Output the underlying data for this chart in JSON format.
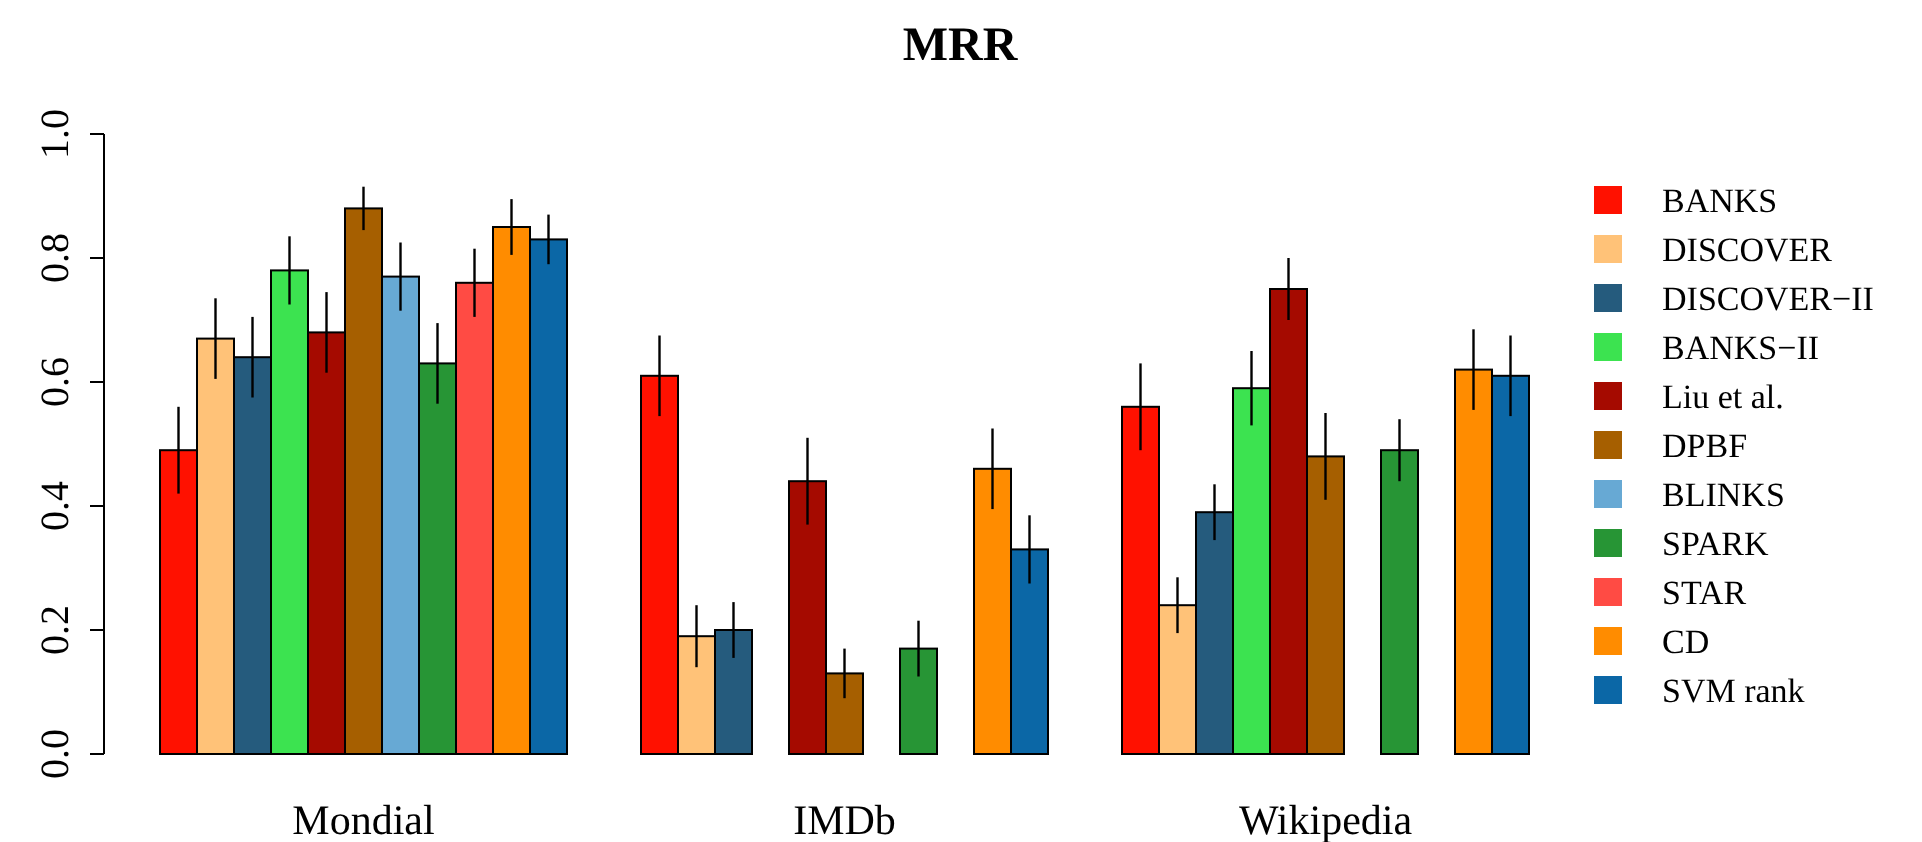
{
  "chart_data": {
    "type": "bar",
    "title": "MRR",
    "categories": [
      "Mondial",
      "IMDb",
      "Wikipedia"
    ],
    "ylim": [
      0,
      1
    ],
    "yticks": [
      {
        "value": 0,
        "label": "0.0"
      },
      0.2,
      0.4,
      0.6,
      0.8,
      {
        "value": 1,
        "label": "1.0"
      }
    ],
    "grid": false,
    "legend": "right",
    "series": [
      {
        "name": "BANKS",
        "color": "#ff1100",
        "values": [
          0.49,
          0.61,
          0.56
        ],
        "errors": [
          0.07,
          0.065,
          0.07
        ]
      },
      {
        "name": "DISCOVER",
        "color": "#ffc278",
        "values": [
          0.67,
          0.19,
          0.24
        ],
        "errors": [
          0.065,
          0.05,
          0.045
        ]
      },
      {
        "name": "DISCOVER−II",
        "color": "#255b7d",
        "values": [
          0.64,
          0.2,
          0.39
        ],
        "errors": [
          0.065,
          0.045,
          0.045
        ]
      },
      {
        "name": "BANKS−II",
        "color": "#3ce350",
        "values": [
          0.78,
          0,
          0.59
        ],
        "errors": [
          0.055,
          null,
          0.06
        ]
      },
      {
        "name": "Liu et al.",
        "color": "#a50a00",
        "values": [
          0.68,
          0.44,
          0.75
        ],
        "errors": [
          0.065,
          0.07,
          0.05
        ]
      },
      {
        "name": "DPBF",
        "color": "#a65f00",
        "values": [
          0.88,
          0.13,
          0.48
        ],
        "errors": [
          0.035,
          0.04,
          0.07
        ]
      },
      {
        "name": "BLINKS",
        "color": "#67a9d4",
        "values": [
          0.77,
          0,
          0
        ],
        "errors": [
          0.055,
          null,
          null
        ]
      },
      {
        "name": "SPARK",
        "color": "#279535",
        "values": [
          0.63,
          0.17,
          0.49
        ],
        "errors": [
          0.065,
          0.045,
          0.05
        ]
      },
      {
        "name": "STAR",
        "color": "#ff4b44",
        "values": [
          0.76,
          0,
          0
        ],
        "errors": [
          0.055,
          null,
          null
        ]
      },
      {
        "name": "CD",
        "color": "#ff8c00",
        "values": [
          0.85,
          0.46,
          0.62
        ],
        "errors": [
          0.045,
          0.065,
          0.065
        ]
      },
      {
        "name": "SVM rank",
        "color": "#0b67a6",
        "values": [
          0.83,
          0.33,
          0.61
        ],
        "errors": [
          0.04,
          0.055,
          0.065
        ]
      }
    ]
  }
}
